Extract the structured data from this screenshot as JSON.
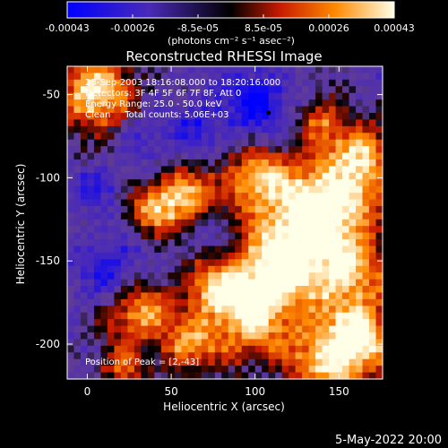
{
  "chart_data": {
    "type": "heatmap",
    "title": "Reconstructed RHESSI Image",
    "xlabel": "Heliocentric X (arcsec)",
    "ylabel": "Heliocentric Y (arcsec)",
    "xlim": [
      -12,
      176
    ],
    "ylim": [
      -221,
      -33
    ],
    "x_ticks": [
      0,
      50,
      100,
      150
    ],
    "y_ticks": [
      -50,
      -100,
      -150,
      -200
    ],
    "colorbar": {
      "range": [
        -0.00043,
        0.00043
      ],
      "ticks": [
        "-0.00043",
        "-0.00026",
        "-8.5e-05",
        "8.5e-05",
        "0.00026",
        "0.00043"
      ],
      "unit_label": "(photons cm⁻² s⁻¹ asec⁻²)"
    },
    "info_lines": [
      "23-Sep-2003 18:16:08.000 to 18:20:16.000",
      "Detectors: 3F 4F 5F 6F 7F 8F, Att 0",
      "Energy Range: 25.0 - 50.0 keV",
      "Clean     Total counts: 5.06E+03"
    ],
    "peak_label": "Position of Peak = [2,-43]",
    "peak_position": [
      2,
      -43
    ],
    "date_stamp": "5-May-2022 20:00",
    "hot_regions": [
      {
        "x": 5,
        "y": -50,
        "r": 16,
        "v": 1.0
      },
      {
        "x": 145,
        "y": -210,
        "r": 18,
        "v": 0.95
      },
      {
        "x": 125,
        "y": -130,
        "r": 22,
        "v": 0.85
      },
      {
        "x": 150,
        "y": -110,
        "r": 20,
        "v": 0.8
      },
      {
        "x": 95,
        "y": -185,
        "r": 18,
        "v": 0.85
      },
      {
        "x": 155,
        "y": -160,
        "r": 18,
        "v": 0.8
      },
      {
        "x": 30,
        "y": -180,
        "r": 14,
        "v": 0.8
      },
      {
        "x": 60,
        "y": -110,
        "r": 12,
        "v": 0.75
      },
      {
        "x": 40,
        "y": -120,
        "r": 12,
        "v": 0.7
      },
      {
        "x": 100,
        "y": -100,
        "r": 14,
        "v": 0.7
      },
      {
        "x": 110,
        "y": -160,
        "r": 16,
        "v": 0.75
      },
      {
        "x": 165,
        "y": -85,
        "r": 12,
        "v": 0.7
      },
      {
        "x": 165,
        "y": -195,
        "r": 12,
        "v": 0.75
      },
      {
        "x": 60,
        "y": -200,
        "r": 12,
        "v": 0.7
      },
      {
        "x": 140,
        "y": -65,
        "r": 10,
        "v": 0.6
      },
      {
        "x": 75,
        "y": -165,
        "r": 12,
        "v": 0.65
      },
      {
        "x": 20,
        "y": -215,
        "r": 10,
        "v": 0.55
      }
    ],
    "cool_regions": [
      {
        "x": 100,
        "y": -55,
        "r": 14,
        "v": 0.9
      },
      {
        "x": 65,
        "y": -70,
        "r": 10,
        "v": 0.6
      },
      {
        "x": 15,
        "y": -155,
        "r": 14,
        "v": 0.7
      },
      {
        "x": 5,
        "y": -105,
        "r": 10,
        "v": 0.5
      },
      {
        "x": 35,
        "y": -75,
        "r": 10,
        "v": 0.5
      },
      {
        "x": 75,
        "y": -130,
        "r": 8,
        "v": 0.4
      }
    ]
  }
}
